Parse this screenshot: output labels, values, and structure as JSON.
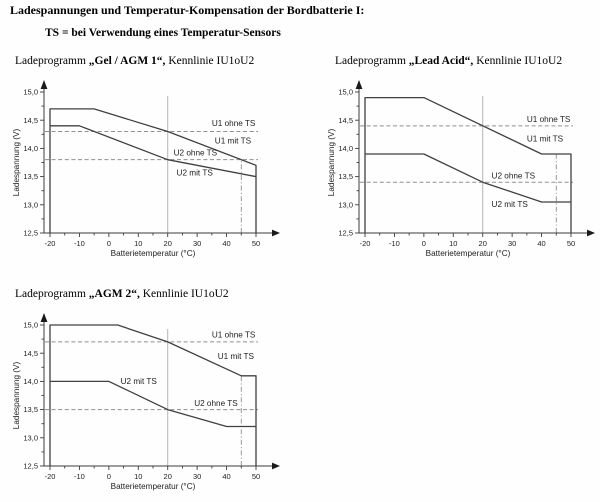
{
  "document": {
    "title": "Ladespannungen und Temperatur-Kompensation der Bordbatterie I:",
    "subtitle": "TS = bei Verwendung eines Temperatur-Sensors"
  },
  "colors": {
    "curve": "#404040",
    "reference_dashed": "#8f8f8f",
    "reference_solid": "#b5b5b5",
    "background": "#fefefe"
  },
  "charts": [
    {
      "id": "gel-agm1",
      "title_prefix": "Ladeprogramm ",
      "title_bold": "„Gel / AGM 1“,",
      "title_suffix": " Kennlinie IU1oU2",
      "chart_data": {
        "type": "line",
        "xlabel": "Batterietemperatur (°C)",
        "ylabel": "Ladespannung (V)",
        "xlim": [
          -20,
          50
        ],
        "ylim": [
          12.5,
          15.0
        ],
        "x_ticks": [
          -20,
          -10,
          0,
          10,
          20,
          30,
          40,
          50
        ],
        "y_ticks": [
          12.5,
          13.0,
          13.5,
          14.0,
          14.5,
          15.0
        ],
        "grid": false,
        "legend": false,
        "series": [
          {
            "name": "U1 mit TS",
            "points": [
              [
                -20,
                12.5
              ],
              [
                -20,
                14.7
              ],
              [
                -5,
                14.7
              ],
              [
                20,
                14.3
              ],
              [
                50,
                13.7
              ],
              [
                50,
                12.5
              ]
            ]
          },
          {
            "name": "U2 mit TS",
            "points": [
              [
                -20,
                14.4
              ],
              [
                -10,
                14.4
              ],
              [
                20,
                13.8
              ],
              [
                50,
                13.5
              ]
            ]
          }
        ],
        "reference_lines": [
          {
            "name": "U1 ohne TS",
            "orientation": "horizontal",
            "value": 14.3,
            "style": "dashed"
          },
          {
            "name": "U2 ohne TS",
            "orientation": "horizontal",
            "value": 13.8,
            "style": "dashed"
          },
          {
            "name": "20C marker",
            "orientation": "vertical",
            "value": 20,
            "style": "solid"
          },
          {
            "name": "45C marker",
            "orientation": "vertical",
            "value": 45,
            "style": "dashdot"
          }
        ],
        "labels": [
          {
            "text": "U1 ohne TS",
            "x": 35,
            "y": 14.4
          },
          {
            "text": "U1 mit TS",
            "x": 36,
            "y": 14.09
          },
          {
            "text": "U2 ohne TS",
            "x": 22,
            "y": 13.87
          },
          {
            "text": "U2 mit TS",
            "x": 23,
            "y": 13.52
          }
        ]
      }
    },
    {
      "id": "lead-acid",
      "title_prefix": "Ladeprogramm ",
      "title_bold": "„Lead Acid“,",
      "title_suffix": " Kennlinie IU1oU2",
      "chart_data": {
        "type": "line",
        "xlabel": "Batterietemperatur (°C)",
        "ylabel": "Ladespannung (V)",
        "xlim": [
          -20,
          50
        ],
        "ylim": [
          12.5,
          15.0
        ],
        "x_ticks": [
          -20,
          -10,
          0,
          10,
          20,
          30,
          40,
          50
        ],
        "y_ticks": [
          12.5,
          13.0,
          13.5,
          14.0,
          14.5,
          15.0
        ],
        "grid": false,
        "legend": false,
        "series": [
          {
            "name": "U1 mit TS",
            "points": [
              [
                -20,
                12.5
              ],
              [
                -20,
                14.9
              ],
              [
                0,
                14.9
              ],
              [
                40,
                13.9
              ],
              [
                50,
                13.9
              ],
              [
                50,
                12.5
              ]
            ]
          },
          {
            "name": "U2 mit TS",
            "points": [
              [
                -20,
                13.9
              ],
              [
                0,
                13.9
              ],
              [
                20,
                13.4
              ],
              [
                40,
                13.05
              ],
              [
                50,
                13.05
              ]
            ]
          }
        ],
        "reference_lines": [
          {
            "name": "U1 ohne TS",
            "orientation": "horizontal",
            "value": 14.4,
            "style": "dashed"
          },
          {
            "name": "U2 ohne TS",
            "orientation": "horizontal",
            "value": 13.4,
            "style": "dashed"
          },
          {
            "name": "20C marker",
            "orientation": "vertical",
            "value": 20,
            "style": "solid"
          },
          {
            "name": "45C marker",
            "orientation": "vertical",
            "value": 45,
            "style": "dashdot"
          }
        ],
        "labels": [
          {
            "text": "U1 ohne TS",
            "x": 35,
            "y": 14.47
          },
          {
            "text": "U1 mit TS",
            "x": 35,
            "y": 14.12
          },
          {
            "text": "U2 ohne TS",
            "x": 23,
            "y": 13.47
          },
          {
            "text": "U2 mit TS",
            "x": 23,
            "y": 12.96
          }
        ]
      }
    },
    {
      "id": "agm2",
      "title_prefix": "Ladeprogramm ",
      "title_bold": "„AGM 2“,",
      "title_suffix": " Kennlinie IU1oU2",
      "chart_data": {
        "type": "line",
        "xlabel": "Batterietemperatur (°C)",
        "ylabel": "Ladespannung (V)",
        "xlim": [
          -20,
          50
        ],
        "ylim": [
          12.5,
          15.0
        ],
        "x_ticks": [
          -20,
          -10,
          0,
          10,
          20,
          30,
          40,
          50
        ],
        "y_ticks": [
          12.5,
          13.0,
          13.5,
          14.0,
          14.5,
          15.0
        ],
        "grid": false,
        "legend": false,
        "series": [
          {
            "name": "U1 mit TS",
            "points": [
              [
                -20,
                12.5
              ],
              [
                -20,
                15.0
              ],
              [
                3,
                15.0
              ],
              [
                20,
                14.7
              ],
              [
                45,
                14.1
              ],
              [
                50,
                14.1
              ],
              [
                50,
                12.5
              ]
            ]
          },
          {
            "name": "U2 mit TS",
            "points": [
              [
                -20,
                14.0
              ],
              [
                0,
                14.0
              ],
              [
                20,
                13.5
              ],
              [
                40,
                13.2
              ],
              [
                50,
                13.2
              ]
            ]
          }
        ],
        "reference_lines": [
          {
            "name": "U1 ohne TS",
            "orientation": "horizontal",
            "value": 14.7,
            "style": "dashed"
          },
          {
            "name": "U2 ohne TS",
            "orientation": "horizontal",
            "value": 13.5,
            "style": "dashed"
          },
          {
            "name": "20C marker",
            "orientation": "vertical",
            "value": 20,
            "style": "solid"
          },
          {
            "name": "45C marker",
            "orientation": "vertical",
            "value": 45,
            "style": "dashdot"
          }
        ],
        "labels": [
          {
            "text": "U1 ohne TS",
            "x": 35,
            "y": 14.78
          },
          {
            "text": "U1 mit TS",
            "x": 37,
            "y": 14.4
          },
          {
            "text": "U2 mit TS",
            "x": 4,
            "y": 13.95
          },
          {
            "text": "U2 ohne TS",
            "x": 29,
            "y": 13.56
          }
        ]
      }
    }
  ]
}
